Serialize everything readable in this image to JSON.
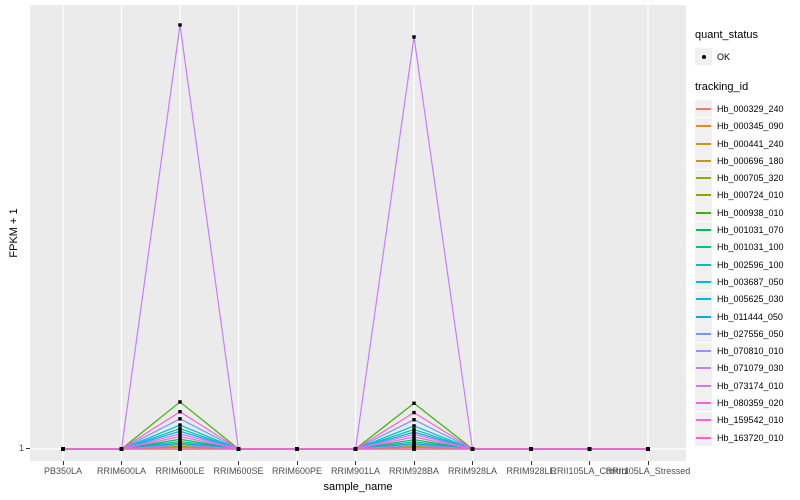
{
  "chart_data": {
    "type": "line",
    "title": "",
    "xlabel": "sample_name",
    "ylabel": "FPKM + 1",
    "y_tick_labels": [
      "1"
    ],
    "y_axis_note": "only the value 1 is labeled on the y axis; all flat series sit at FPKM+1 = 1",
    "value_encoding": "series values are heights above the y=1 baseline expressed as fraction of full panel height (0 = FPKM+1 of 1, 1 = top of panel)",
    "x_categories": [
      "PB350LA",
      "RRIM600LA",
      "RRIM600LE",
      "RRIM600SE",
      "RRIM600PE",
      "RRIM901LA",
      "RRIM928BA",
      "RRIM928LA",
      "RRIM928LE",
      "RRII105LA_Control",
      "RRII105LA_Stressed"
    ],
    "legend_quant_status": {
      "title": "quant_status",
      "items": [
        "OK"
      ]
    },
    "legend_tracking_id_title": "tracking_id",
    "marker": "black-point",
    "legend_position": "right",
    "grid": "vertical-major-white-on-grey",
    "series": [
      {
        "name": "Hb_000329_240",
        "color": "#F8766D",
        "values": [
          0,
          0,
          0,
          0,
          0,
          0,
          0,
          0,
          0,
          0,
          0
        ]
      },
      {
        "name": "Hb_000345_090",
        "color": "#E88526",
        "values": [
          0,
          0,
          0,
          0,
          0,
          0,
          0,
          0,
          0,
          0,
          0
        ]
      },
      {
        "name": "Hb_000441_240",
        "color": "#D39200",
        "values": [
          0,
          0,
          0,
          0,
          0,
          0,
          0,
          0,
          0,
          0,
          0
        ]
      },
      {
        "name": "Hb_000696_180",
        "color": "#BB9D00",
        "values": [
          0,
          0,
          0.004,
          0,
          0,
          0,
          0.004,
          0,
          0,
          0,
          0
        ]
      },
      {
        "name": "Hb_000705_320",
        "color": "#9DA700",
        "values": [
          0,
          0,
          0.006,
          0,
          0,
          0,
          0.006,
          0,
          0,
          0,
          0
        ]
      },
      {
        "name": "Hb_000724_010",
        "color": "#75AF00",
        "values": [
          0,
          0,
          0.012,
          0,
          0,
          0,
          0.011,
          0,
          0,
          0,
          0
        ]
      },
      {
        "name": "Hb_000938_010",
        "color": "#39B600",
        "values": [
          0,
          0,
          0.106,
          0,
          0,
          0,
          0.103,
          0,
          0,
          0,
          0
        ]
      },
      {
        "name": "Hb_001031_070",
        "color": "#00BC59",
        "values": [
          0,
          0,
          0.022,
          0,
          0,
          0,
          0.021,
          0,
          0,
          0,
          0
        ]
      },
      {
        "name": "Hb_001031_100",
        "color": "#00C08D",
        "values": [
          0,
          0,
          0.017,
          0,
          0,
          0,
          0.016,
          0,
          0,
          0,
          0
        ]
      },
      {
        "name": "Hb_002596_100",
        "color": "#00C0B4",
        "values": [
          0,
          0,
          0.046,
          0,
          0,
          0,
          0.044,
          0,
          0,
          0,
          0
        ]
      },
      {
        "name": "Hb_003687_050",
        "color": "#00BDD2",
        "values": [
          0,
          0,
          0.054,
          0,
          0,
          0,
          0.052,
          0,
          0,
          0,
          0
        ]
      },
      {
        "name": "Hb_005625_030",
        "color": "#00B5EC",
        "values": [
          0,
          0,
          0.04,
          0,
          0,
          0,
          0.038,
          0,
          0,
          0,
          0
        ]
      },
      {
        "name": "Hb_011444_050",
        "color": "#00A7FF",
        "values": [
          0,
          0,
          0.013,
          0,
          0,
          0,
          0.012,
          0,
          0,
          0,
          0
        ]
      },
      {
        "name": "Hb_027556_050",
        "color": "#7097FF",
        "values": [
          0,
          0,
          0.068,
          0,
          0,
          0,
          0.066,
          0,
          0,
          0,
          0
        ]
      },
      {
        "name": "Hb_070810_010",
        "color": "#A58AFF",
        "values": [
          0,
          0,
          0.009,
          0,
          0,
          0,
          0.009,
          0,
          0,
          0,
          0
        ]
      },
      {
        "name": "Hb_071079_030",
        "color": "#C77CFF",
        "values": [
          0,
          0,
          0.955,
          0,
          0,
          0,
          0.928,
          0,
          0,
          0,
          0
        ]
      },
      {
        "name": "Hb_073174_010",
        "color": "#DF70F8",
        "values": [
          0,
          0,
          0.034,
          0,
          0,
          0,
          0.033,
          0,
          0,
          0,
          0
        ]
      },
      {
        "name": "Hb_080359_020",
        "color": "#F166E8",
        "values": [
          0,
          0,
          0.028,
          0,
          0,
          0,
          0.027,
          0,
          0,
          0,
          0
        ]
      },
      {
        "name": "Hb_159542_010",
        "color": "#FC61D5",
        "values": [
          0,
          0,
          0.084,
          0,
          0,
          0,
          0.082,
          0,
          0,
          0,
          0
        ]
      },
      {
        "name": "Hb_163720_010",
        "color": "#FF62BF",
        "values": [
          0,
          0,
          0,
          0,
          0,
          0,
          0,
          0,
          0,
          0,
          0
        ]
      }
    ]
  },
  "colors": {
    "panel_bg": "#EBEBEB",
    "gridline": "#FFFFFF",
    "point": "#000000",
    "tick": "#333333",
    "tick_text": "#4D4D4D",
    "legend_key_bg": "#F0F0F0"
  }
}
